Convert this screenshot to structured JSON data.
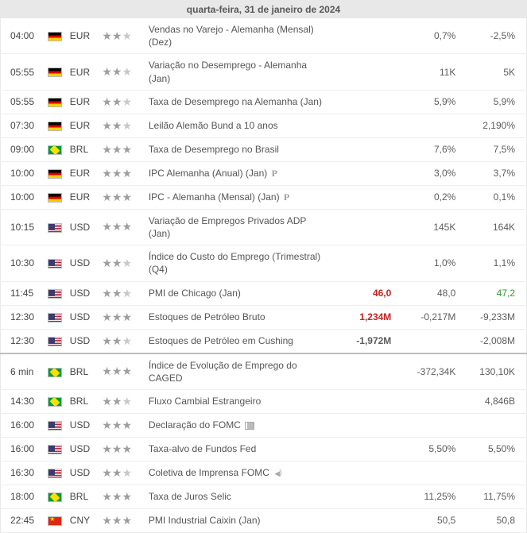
{
  "header": "quarta-feira, 31 de janeiro de 2024",
  "flags": {
    "de": "flag-de",
    "br": "flag-br",
    "us": "flag-us",
    "cn": "flag-cn"
  },
  "rows": [
    {
      "time": "04:00",
      "flag": "de",
      "cur": "EUR",
      "imp": 2,
      "event": "Vendas no Varejo - Alemanha (Mensal) (Dez)",
      "actual": "",
      "fore": "0,7%",
      "prev": "-2,5%"
    },
    {
      "time": "05:55",
      "flag": "de",
      "cur": "EUR",
      "imp": 2,
      "event": "Variação no Desemprego - Alemanha (Jan)",
      "actual": "",
      "fore": "11K",
      "prev": "5K"
    },
    {
      "time": "05:55",
      "flag": "de",
      "cur": "EUR",
      "imp": 2,
      "event": "Taxa de Desemprego na Alemanha (Jan)",
      "actual": "",
      "fore": "5,9%",
      "prev": "5,9%"
    },
    {
      "time": "07:30",
      "flag": "de",
      "cur": "EUR",
      "imp": 2,
      "event": "Leilão Alemão Bund a 10 anos",
      "actual": "",
      "fore": "",
      "prev": "2,190%"
    },
    {
      "time": "09:00",
      "flag": "br",
      "cur": "BRL",
      "imp": 3,
      "event": "Taxa de Desemprego no Brasil",
      "actual": "",
      "fore": "7,6%",
      "prev": "7,5%"
    },
    {
      "time": "10:00",
      "flag": "de",
      "cur": "EUR",
      "imp": 3,
      "event": "IPC Alemanha (Anual) (Jan)",
      "icon": "p",
      "actual": "",
      "fore": "3,0%",
      "prev": "3,7%"
    },
    {
      "time": "10:00",
      "flag": "de",
      "cur": "EUR",
      "imp": 3,
      "event": "IPC - Alemanha (Mensal) (Jan)",
      "icon": "p",
      "actual": "",
      "fore": "0,2%",
      "prev": "0,1%"
    },
    {
      "time": "10:15",
      "flag": "us",
      "cur": "USD",
      "imp": 3,
      "event": "Variação de Empregos Privados ADP (Jan)",
      "actual": "",
      "fore": "145K",
      "prev": "164K"
    },
    {
      "time": "10:30",
      "flag": "us",
      "cur": "USD",
      "imp": 2,
      "event": "Índice do Custo do Emprego (Trimestral) (Q4)",
      "actual": "",
      "fore": "1,0%",
      "prev": "1,1%"
    },
    {
      "time": "11:45",
      "flag": "us",
      "cur": "USD",
      "imp": 2,
      "event": "PMI de Chicago (Jan)",
      "actual": "46,0",
      "actual_color": "red",
      "fore": "48,0",
      "prev": "47,2",
      "prev_color": "green"
    },
    {
      "time": "12:30",
      "flag": "us",
      "cur": "USD",
      "imp": 3,
      "event": "Estoques de Petróleo Bruto",
      "actual": "1,234M",
      "actual_color": "red",
      "fore": "-0,217M",
      "prev": "-9,233M"
    },
    {
      "time": "12:30",
      "flag": "us",
      "cur": "USD",
      "imp": 2,
      "event": "Estoques de Petróleo em Cushing",
      "actual": "-1,972M",
      "fore": "",
      "prev": "-2,008M"
    },
    {
      "time": "6 min",
      "flag": "br",
      "cur": "BRL",
      "imp": 3,
      "event": "Índice de Evolução de Emprego do CAGED",
      "actual": "",
      "fore": "-372,34K",
      "prev": "130,10K",
      "sep": true
    },
    {
      "time": "14:30",
      "flag": "br",
      "cur": "BRL",
      "imp": 2,
      "event": "Fluxo Cambial Estrangeiro",
      "actual": "",
      "fore": "",
      "prev": "4,846B"
    },
    {
      "time": "16:00",
      "flag": "us",
      "cur": "USD",
      "imp": 3,
      "event": "Declaração do FOMC",
      "icon": "doc",
      "actual": "",
      "fore": "",
      "prev": ""
    },
    {
      "time": "16:00",
      "flag": "us",
      "cur": "USD",
      "imp": 3,
      "event": "Taxa-alvo de Fundos Fed",
      "actual": "",
      "fore": "5,50%",
      "prev": "5,50%"
    },
    {
      "time": "16:30",
      "flag": "us",
      "cur": "USD",
      "imp": 2,
      "event": "Coletiva de Imprensa FOMC",
      "icon": "audio",
      "actual": "",
      "fore": "",
      "prev": ""
    },
    {
      "time": "18:00",
      "flag": "br",
      "cur": "BRL",
      "imp": 3,
      "event": "Taxa de Juros Selic",
      "actual": "",
      "fore": "11,25%",
      "prev": "11,75%"
    },
    {
      "time": "22:45",
      "flag": "cn",
      "cur": "CNY",
      "imp": 3,
      "event": "PMI Industrial Caixin (Jan)",
      "actual": "",
      "fore": "50,5",
      "prev": "50,8"
    }
  ]
}
